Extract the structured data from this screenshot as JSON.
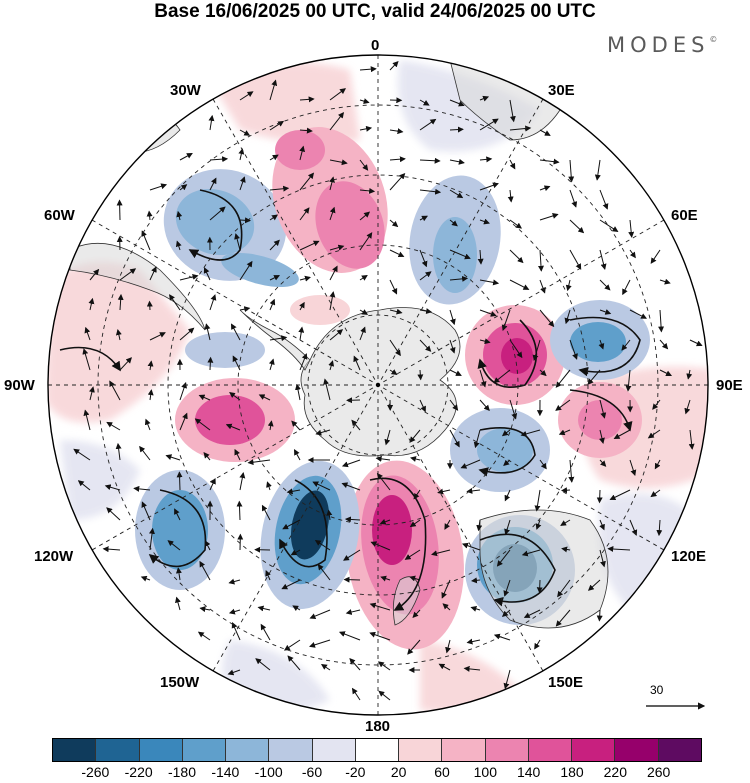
{
  "title": "Base 16/06/2025 00 UTC, valid 24/06/2025 00 UTC",
  "logo": {
    "text": "MODES",
    "mark": "©"
  },
  "longitude_labels": {
    "n": "0",
    "ne": "30E",
    "ene": "60E",
    "e": "90E",
    "ese": "120E",
    "se": "150E",
    "s": "180",
    "sw": "150W",
    "wsw": "120W",
    "w": "90W",
    "wnw": "60W",
    "nw": "30W"
  },
  "colorbar": {
    "colors": [
      "#0f3b5c",
      "#1f6493",
      "#3a87bb",
      "#5f9fcb",
      "#8db6d9",
      "#bac9e3",
      "#e3e4f1",
      "#ffffff",
      "#f8d5d8",
      "#f5b3c5",
      "#ec84b0",
      "#e0539a",
      "#c8207f",
      "#96006b",
      "#5e0b61"
    ],
    "ticks": [
      "-260",
      "-220",
      "-180",
      "-140",
      "-100",
      "-60",
      "-20",
      "20",
      "60",
      "100",
      "140",
      "180",
      "220",
      "260"
    ]
  },
  "reference_vector": {
    "label": "30"
  }
}
